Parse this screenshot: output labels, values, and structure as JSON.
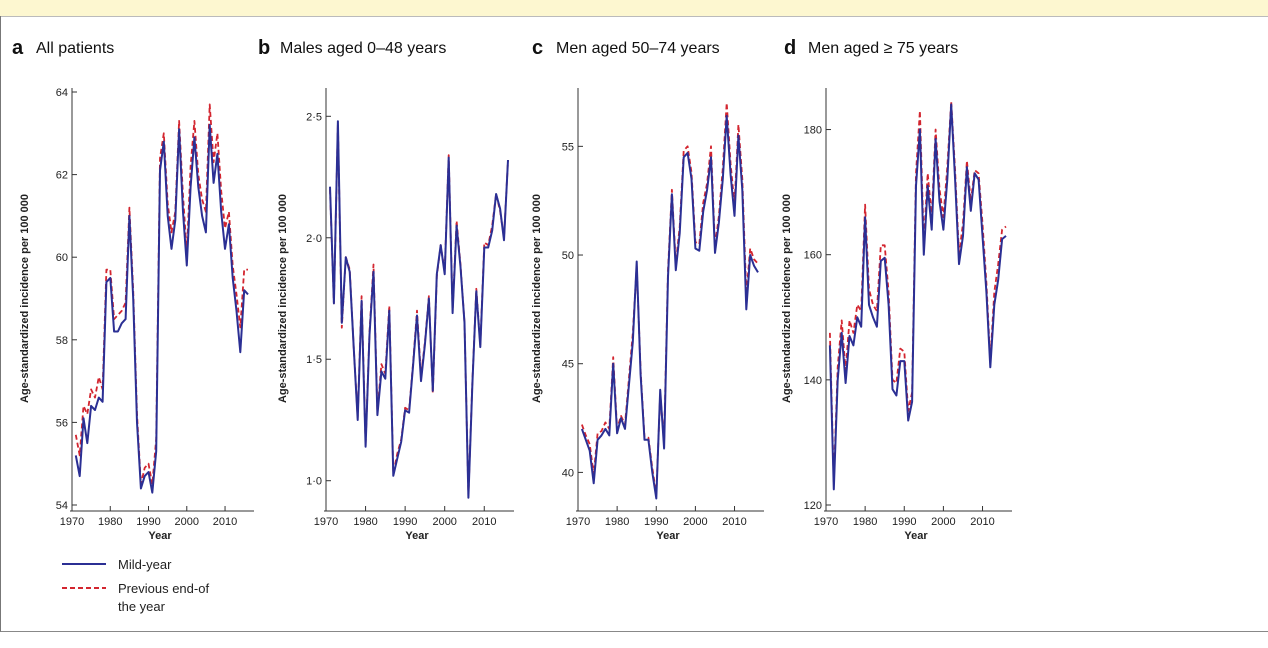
{
  "colors": {
    "mid_year": "#2b2f94",
    "previous_end": "#d3252f",
    "axis": "#333333"
  },
  "legend": {
    "items": [
      {
        "label": "Mild-year",
        "color": "#2b2f94",
        "style": "solid"
      },
      {
        "label": "Previous end-of the year",
        "lines": [
          "Previous end-of",
          "the year"
        ],
        "color": "#d3252f",
        "style": "dashed"
      }
    ]
  },
  "chart_data": [
    {
      "letter": "a",
      "title": "All patients",
      "type": "line",
      "xlabel": "Year",
      "ylabel": "Age-standardized incidence per 100 000",
      "xlim": [
        1970,
        2016
      ],
      "ylim": [
        54,
        64
      ],
      "xticks": [
        1970,
        1980,
        1990,
        2000,
        2010
      ],
      "xtick_labels": [
        "1970",
        "1980",
        "1990",
        "2000",
        "2010"
      ],
      "yticks": [
        54,
        56,
        58,
        60,
        62,
        64
      ],
      "ytick_labels": [
        "54",
        "56",
        "58",
        "60",
        "62",
        "64"
      ],
      "x": [
        1971,
        1972,
        1973,
        1974,
        1975,
        1976,
        1977,
        1978,
        1979,
        1980,
        1981,
        1982,
        1983,
        1984,
        1985,
        1986,
        1987,
        1988,
        1989,
        1990,
        1991,
        1992,
        1993,
        1994,
        1995,
        1996,
        1997,
        1998,
        1999,
        2000,
        2001,
        2002,
        2003,
        2004,
        2005,
        2006,
        2007,
        2008,
        2009,
        2010,
        2011,
        2012,
        2013,
        2014,
        2015,
        2016
      ],
      "series": [
        {
          "name": "Mild-year",
          "values": [
            55.2,
            54.7,
            56.1,
            55.5,
            56.4,
            56.3,
            56.6,
            56.5,
            59.4,
            59.5,
            58.2,
            58.2,
            58.4,
            58.5,
            61.0,
            59.0,
            56.0,
            54.4,
            54.7,
            54.8,
            54.3,
            55.3,
            62.1,
            62.8,
            61.0,
            60.2,
            60.9,
            63.1,
            61.1,
            59.8,
            61.7,
            62.9,
            61.7,
            61.0,
            60.6,
            63.2,
            61.8,
            62.5,
            61.1,
            60.2,
            60.8,
            59.5,
            58.7,
            57.7,
            59.2,
            59.1
          ]
        },
        {
          "name": "Previous end-of the year",
          "values": [
            55.7,
            55.2,
            56.4,
            56.2,
            56.8,
            56.6,
            57.1,
            56.8,
            59.7,
            59.7,
            58.5,
            58.6,
            58.7,
            58.9,
            61.2,
            59.2,
            56.2,
            54.5,
            54.9,
            55.0,
            54.5,
            55.6,
            62.4,
            63.0,
            61.3,
            60.6,
            61.1,
            63.3,
            61.5,
            60.1,
            62.2,
            63.3,
            62.0,
            61.4,
            61.1,
            63.7,
            62.3,
            63.0,
            61.6,
            60.7,
            61.1,
            59.8,
            59.1,
            58.3,
            59.7,
            59.7
          ]
        }
      ]
    },
    {
      "letter": "b",
      "title": "Males aged 0–48 years",
      "type": "line",
      "xlabel": "Year",
      "ylabel": "Age-standardized incidence per 100 000",
      "xlim": [
        1970,
        2016
      ],
      "ylim": [
        0.9,
        2.6
      ],
      "xticks": [
        1970,
        1980,
        1990,
        2000,
        2010
      ],
      "xtick_labels": [
        "1970",
        "1980",
        "1990",
        "2000",
        "2010"
      ],
      "yticks": [
        1.0,
        1.5,
        2.0,
        2.5
      ],
      "ytick_labels": [
        "1·0",
        "1·5",
        "2·0",
        "2·5"
      ],
      "x": [
        1971,
        1972,
        1973,
        1974,
        1975,
        1976,
        1977,
        1978,
        1979,
        1980,
        1981,
        1982,
        1983,
        1984,
        1985,
        1986,
        1987,
        1988,
        1989,
        1990,
        1991,
        1992,
        1993,
        1994,
        1995,
        1996,
        1997,
        1998,
        1999,
        2000,
        2001,
        2002,
        2003,
        2004,
        2005,
        2006,
        2007,
        2008,
        2009,
        2010,
        2011,
        2012,
        2013,
        2014,
        2015,
        2016
      ],
      "series": [
        {
          "name": "Mild-year",
          "values": [
            2.21,
            1.73,
            2.48,
            1.65,
            1.92,
            1.86,
            1.55,
            1.25,
            1.74,
            1.14,
            1.6,
            1.86,
            1.27,
            1.45,
            1.42,
            1.7,
            1.02,
            1.09,
            1.16,
            1.29,
            1.28,
            1.47,
            1.68,
            1.41,
            1.56,
            1.75,
            1.37,
            1.85,
            1.97,
            1.85,
            2.33,
            1.69,
            2.05,
            1.88,
            1.65,
            0.93,
            1.4,
            1.78,
            1.55,
            1.96,
            1.96,
            2.03,
            2.18,
            2.12,
            1.99,
            2.32
          ]
        },
        {
          "name": "Previous end-of the year",
          "values": [
            2.2,
            1.73,
            2.47,
            1.63,
            1.92,
            1.87,
            1.55,
            1.26,
            1.76,
            1.15,
            1.61,
            1.89,
            1.28,
            1.48,
            1.44,
            1.72,
            1.03,
            1.11,
            1.17,
            1.3,
            1.29,
            1.48,
            1.7,
            1.43,
            1.57,
            1.76,
            1.36,
            1.84,
            1.97,
            1.86,
            2.34,
            1.7,
            2.07,
            1.89,
            1.65,
            0.94,
            1.41,
            1.79,
            1.56,
            1.98,
            1.97,
            2.05,
            2.18,
            2.11,
            2.0,
            2.32
          ]
        }
      ]
    },
    {
      "letter": "c",
      "title": "Men aged 50–74 years",
      "type": "line",
      "xlabel": "Year",
      "ylabel": "Age-standardized incidence per 100 000",
      "xlim": [
        1970,
        2016
      ],
      "ylim": [
        38.5,
        57.5
      ],
      "xticks": [
        1970,
        1980,
        1990,
        2000,
        2010
      ],
      "xtick_labels": [
        "1970",
        "1980",
        "1990",
        "2000",
        "2010"
      ],
      "yticks": [
        40,
        45,
        50,
        55
      ],
      "ytick_labels": [
        "40",
        "45",
        "50",
        "55"
      ],
      "x": [
        1971,
        1972,
        1973,
        1974,
        1975,
        1976,
        1977,
        1978,
        1979,
        1980,
        1981,
        1982,
        1983,
        1984,
        1985,
        1986,
        1987,
        1988,
        1989,
        1990,
        1991,
        1992,
        1993,
        1994,
        1995,
        1996,
        1997,
        1998,
        1999,
        2000,
        2001,
        2002,
        2003,
        2004,
        2005,
        2006,
        2007,
        2008,
        2009,
        2010,
        2011,
        2012,
        2013,
        2014,
        2015,
        2016
      ],
      "series": [
        {
          "name": "Mild-year",
          "values": [
            42.0,
            41.5,
            41.0,
            39.5,
            41.5,
            41.7,
            42.0,
            41.7,
            45.0,
            41.8,
            42.5,
            42.0,
            44.0,
            46.0,
            49.7,
            44.5,
            41.5,
            41.5,
            40.0,
            38.8,
            43.8,
            41.1,
            49.0,
            52.8,
            49.3,
            51.0,
            54.5,
            54.7,
            53.5,
            50.3,
            50.2,
            52.0,
            53.0,
            54.5,
            50.1,
            51.5,
            53.5,
            56.4,
            53.7,
            51.8,
            55.5,
            53.0,
            47.5,
            50.0,
            49.5,
            49.2
          ]
        },
        {
          "name": "Previous end-of the year",
          "values": [
            42.2,
            41.7,
            41.3,
            39.9,
            41.8,
            41.9,
            42.3,
            42.0,
            45.3,
            42.0,
            42.6,
            42.2,
            44.3,
            46.4,
            49.5,
            44.7,
            41.6,
            41.6,
            40.2,
            39.0,
            43.6,
            41.4,
            49.3,
            53.0,
            49.6,
            51.3,
            54.8,
            55.0,
            53.8,
            50.6,
            50.5,
            52.4,
            53.3,
            55.0,
            50.4,
            51.8,
            54.0,
            57.0,
            54.2,
            52.3,
            56.0,
            53.5,
            48.2,
            50.3,
            49.8,
            49.6
          ]
        }
      ]
    },
    {
      "letter": "d",
      "title": "Men aged ≥ 75 years",
      "type": "line",
      "xlabel": "Year",
      "ylabel": "Age-standardized incidence per 100 000",
      "xlim": [
        1970,
        2016
      ],
      "ylim": [
        120,
        186
      ],
      "xticks": [
        1970,
        1980,
        1990,
        2000,
        2010
      ],
      "xtick_labels": [
        "1970",
        "1980",
        "1990",
        "2000",
        "2010"
      ],
      "yticks": [
        120,
        140,
        160,
        180
      ],
      "ytick_labels": [
        "120",
        "140",
        "160",
        "180"
      ],
      "x": [
        1971,
        1972,
        1973,
        1974,
        1975,
        1976,
        1977,
        1978,
        1979,
        1980,
        1981,
        1982,
        1983,
        1984,
        1985,
        1986,
        1987,
        1988,
        1989,
        1990,
        1991,
        1992,
        1993,
        1994,
        1995,
        1996,
        1997,
        1998,
        1999,
        2000,
        2001,
        2002,
        2003,
        2004,
        2005,
        2006,
        2007,
        2008,
        2009,
        2010,
        2011,
        2012,
        2013,
        2014,
        2015,
        2016
      ],
      "series": [
        {
          "name": "Mild-year",
          "values": [
            145.5,
            122.5,
            140.0,
            147.5,
            139.5,
            147.0,
            145.5,
            150.0,
            148.5,
            166.0,
            152.0,
            150.0,
            148.5,
            159.0,
            159.5,
            152.0,
            138.5,
            137.5,
            143.0,
            143.0,
            133.5,
            136.5,
            171.0,
            180.0,
            160.0,
            171.0,
            164.0,
            178.5,
            168.5,
            164.0,
            172.0,
            184.0,
            172.0,
            158.5,
            163.0,
            174.0,
            167.0,
            173.0,
            172.0,
            163.0,
            154.0,
            142.0,
            152.0,
            156.0,
            162.5,
            163.0
          ]
        },
        {
          "name": "Previous end-of the year",
          "values": [
            147.5,
            123.5,
            142.0,
            149.5,
            141.5,
            149.5,
            147.5,
            152.0,
            151.0,
            168.0,
            154.5,
            152.0,
            151.0,
            161.5,
            161.5,
            154.0,
            140.0,
            139.5,
            145.0,
            144.5,
            135.0,
            138.0,
            173.0,
            183.0,
            162.0,
            173.0,
            166.0,
            180.0,
            170.5,
            166.0,
            174.0,
            184.5,
            173.5,
            160.0,
            165.0,
            175.0,
            168.5,
            173.5,
            173.0,
            165.0,
            155.5,
            143.0,
            154.0,
            158.5,
            164.0,
            164.5
          ]
        }
      ]
    }
  ]
}
